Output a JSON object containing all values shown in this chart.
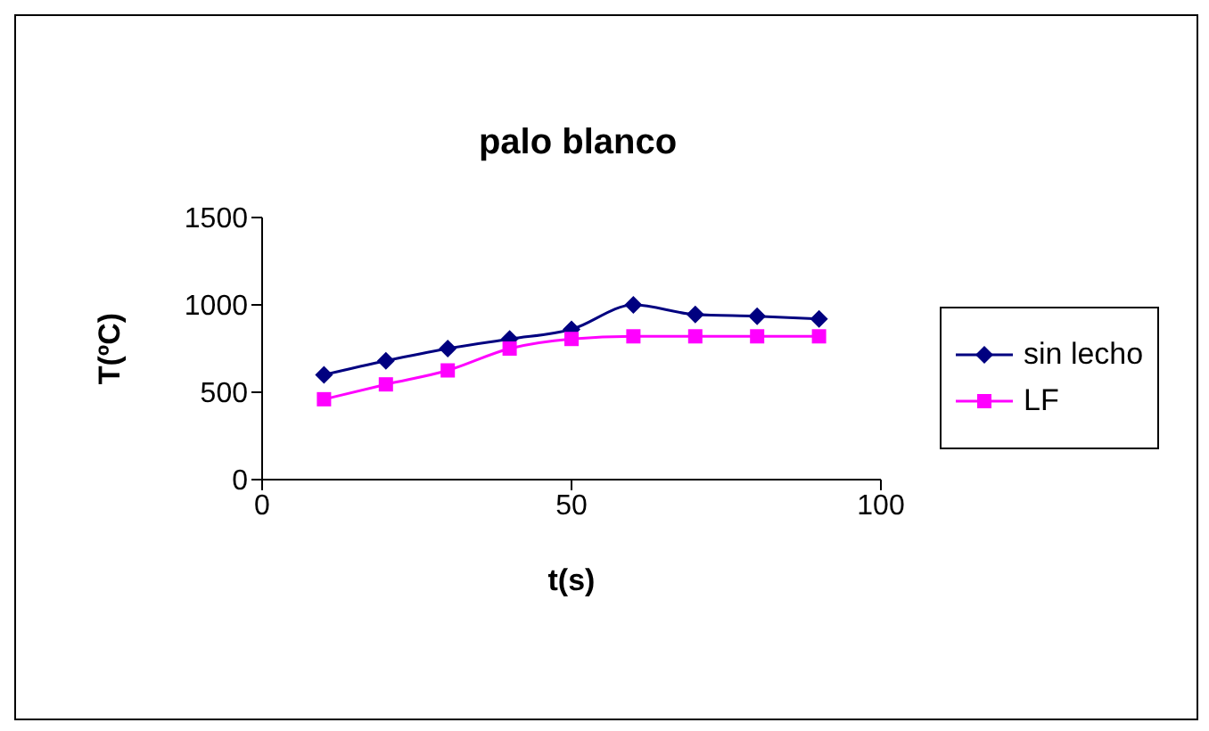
{
  "chart_data": {
    "type": "line",
    "title": "palo blanco",
    "xlabel": "t(s)",
    "ylabel": "T(ºC)",
    "x": [
      10,
      20,
      30,
      40,
      50,
      60,
      70,
      80,
      90
    ],
    "series": [
      {
        "name": "sin lecho",
        "color": "#000080",
        "marker": "diamond",
        "values": [
          600,
          680,
          750,
          805,
          860,
          1000,
          945,
          935,
          920
        ]
      },
      {
        "name": "LF",
        "color": "#ff00ff",
        "marker": "square",
        "values": [
          460,
          545,
          625,
          750,
          805,
          820,
          820,
          820,
          820
        ]
      }
    ],
    "xlim": [
      0,
      100
    ],
    "xticks": [
      0,
      50,
      100
    ],
    "ylim": [
      0,
      1500
    ],
    "yticks": [
      0,
      500,
      1000,
      1500
    ],
    "grid": false,
    "legend": "right"
  }
}
